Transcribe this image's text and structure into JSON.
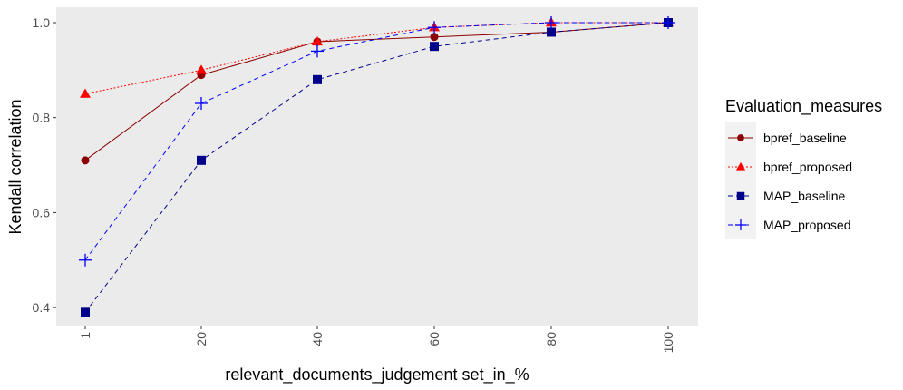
{
  "chart_data": {
    "type": "line",
    "title": "",
    "xlabel": "relevant_documents_judgement set_in_%",
    "ylabel": "Kendall correlation",
    "categories": [
      "1",
      "20",
      "40",
      "60",
      "80",
      "100"
    ],
    "ylim": [
      0.36,
      1.03
    ],
    "yticks": [
      "0.4",
      "0.6",
      "0.8",
      "1.0"
    ],
    "grid": false,
    "panel_background": "#ebebeb",
    "legend": {
      "title": "Evaluation_measures",
      "position": "right"
    },
    "series": [
      {
        "name": "bpref_baseline",
        "color": "#8b0000",
        "marker": "circle",
        "linestyle": "solid",
        "values": [
          0.71,
          0.89,
          0.96,
          0.97,
          0.98,
          1.0
        ]
      },
      {
        "name": "bpref_proposed",
        "color": "#ff0000",
        "marker": "triangle",
        "linestyle": "dotted",
        "values": [
          0.85,
          0.9,
          0.96,
          0.99,
          1.0,
          1.0
        ]
      },
      {
        "name": "MAP_baseline",
        "color": "#00008b",
        "marker": "square",
        "linestyle": "dashed",
        "values": [
          0.39,
          0.71,
          0.88,
          0.95,
          0.98,
          1.0
        ]
      },
      {
        "name": "MAP_proposed",
        "color": "#0000ff",
        "marker": "plus",
        "linestyle": "dashed",
        "values": [
          0.5,
          0.83,
          0.94,
          0.99,
          1.0,
          1.0
        ]
      }
    ]
  }
}
